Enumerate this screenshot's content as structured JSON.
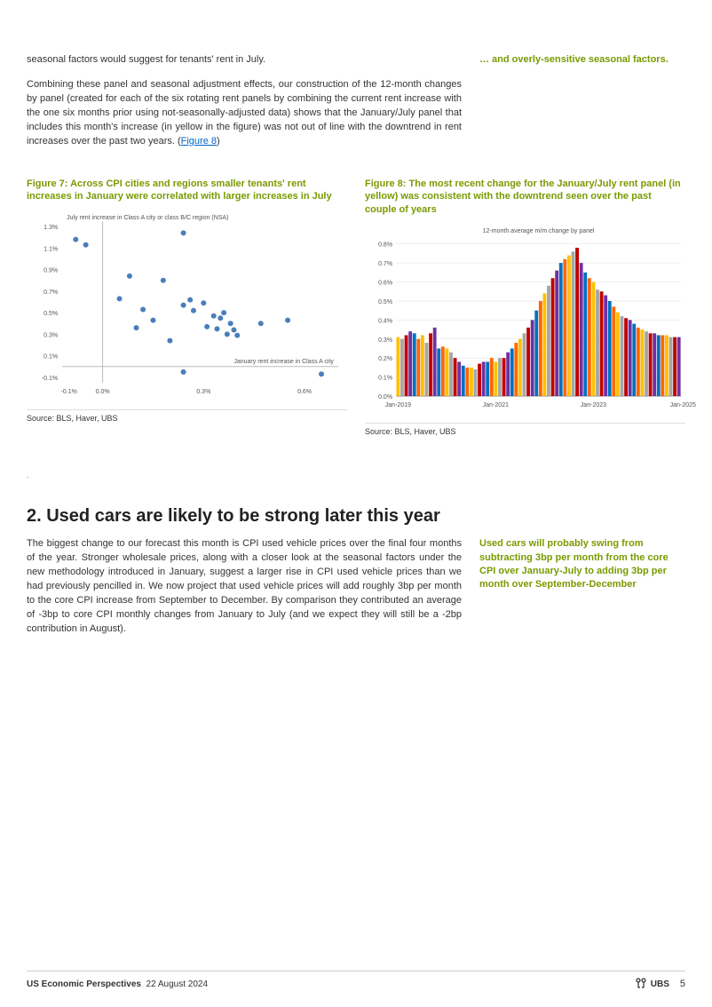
{
  "top": {
    "para1": "seasonal factors would suggest for tenants' rent in July.",
    "para2_pre": "Combining these panel and seasonal adjustment effects, our construction of the 12-month changes by panel (created for each of the six rotating rent panels by combining the current rent increase with the one six months prior using not-seasonally-adjusted data) shows that the January/July panel that includes this month's increase (in yellow in the figure) was not out of line with the downtrend in rent increases over the past two years. (",
    "para2_link": "Figure 8",
    "para2_post": ")",
    "margin1": "… and overly-sensitive seasonal factors."
  },
  "fig7": {
    "title": "Figure 7: Across CPI cities and regions smaller tenants' rent increases in January were correlated with larger increases in July",
    "source": "Source: BLS, Haver, UBS",
    "y_label": "July rent increase in Class A city or class B/C region (NSA)",
    "x_label": "January rent increase in Class A city",
    "x_ticks": [
      "-0.1%",
      "0.0%",
      "0.3%",
      "0.6%"
    ],
    "y_ticks": [
      "-0.1%",
      "0.1%",
      "0.3%",
      "0.5%",
      "0.7%",
      "0.9%",
      "1.1%",
      "1.3%"
    ],
    "points": [
      {
        "x": -0.08,
        "y": 1.18
      },
      {
        "x": -0.05,
        "y": 1.13
      },
      {
        "x": 0.05,
        "y": 0.63
      },
      {
        "x": 0.08,
        "y": 0.84
      },
      {
        "x": 0.1,
        "y": 0.36
      },
      {
        "x": 0.12,
        "y": 0.53
      },
      {
        "x": 0.15,
        "y": 0.43
      },
      {
        "x": 0.18,
        "y": 0.8
      },
      {
        "x": 0.2,
        "y": 0.24
      },
      {
        "x": 0.24,
        "y": 1.24
      },
      {
        "x": 0.24,
        "y": 0.57
      },
      {
        "x": 0.24,
        "y": -0.05
      },
      {
        "x": 0.26,
        "y": 0.62
      },
      {
        "x": 0.27,
        "y": 0.52
      },
      {
        "x": 0.3,
        "y": 0.59
      },
      {
        "x": 0.31,
        "y": 0.37
      },
      {
        "x": 0.33,
        "y": 0.47
      },
      {
        "x": 0.34,
        "y": 0.35
      },
      {
        "x": 0.35,
        "y": 0.45
      },
      {
        "x": 0.36,
        "y": 0.5
      },
      {
        "x": 0.37,
        "y": 0.3
      },
      {
        "x": 0.38,
        "y": 0.4
      },
      {
        "x": 0.39,
        "y": 0.34
      },
      {
        "x": 0.4,
        "y": 0.29
      },
      {
        "x": 0.47,
        "y": 0.4
      },
      {
        "x": 0.55,
        "y": 0.43
      },
      {
        "x": 0.65,
        "y": -0.07
      }
    ],
    "xlim": [
      -0.12,
      0.7
    ],
    "ylim": [
      -0.15,
      1.35
    ],
    "point_color": "#4a7ebb",
    "axis_color": "#bbbbbb"
  },
  "fig8": {
    "title": "Figure 8: The most recent change for the January/July rent panel (in yellow) was consistent with the downtrend seen over the past couple of years",
    "source": "Source: BLS, Haver, UBS",
    "sub_label": "12-month average m/m change by panel",
    "x_ticks": [
      "Jan-2019",
      "Jan-2021",
      "Jan-2023",
      "Jan-2025"
    ],
    "y_ticks": [
      "0.0%",
      "0.1%",
      "0.2%",
      "0.3%",
      "0.4%",
      "0.5%",
      "0.6%",
      "0.7%",
      "0.8%"
    ],
    "ylim": [
      0,
      0.85
    ],
    "bar_colors": [
      "#ffc000",
      "#a6a6a6",
      "#c00000",
      "#7030a0",
      "#0070c0",
      "#ff6600"
    ],
    "bars": [
      0.31,
      0.3,
      0.32,
      0.34,
      0.33,
      0.3,
      0.32,
      0.28,
      0.33,
      0.36,
      0.25,
      0.26,
      0.25,
      0.23,
      0.2,
      0.18,
      0.16,
      0.15,
      0.15,
      0.14,
      0.17,
      0.18,
      0.18,
      0.2,
      0.18,
      0.2,
      0.2,
      0.23,
      0.25,
      0.28,
      0.3,
      0.33,
      0.36,
      0.4,
      0.45,
      0.5,
      0.54,
      0.58,
      0.62,
      0.66,
      0.7,
      0.72,
      0.74,
      0.76,
      0.78,
      0.7,
      0.65,
      0.62,
      0.6,
      0.56,
      0.55,
      0.53,
      0.5,
      0.47,
      0.44,
      0.42,
      0.41,
      0.4,
      0.38,
      0.36,
      0.35,
      0.34,
      0.33,
      0.33,
      0.32,
      0.32,
      0.32,
      0.31,
      0.31,
      0.31
    ],
    "grid_color": "#e0e0e0"
  },
  "section2": {
    "heading": "2. Used cars are likely to be strong later this year",
    "para": "The biggest change to our forecast this month is CPI used vehicle prices over the final four months of the year. Stronger wholesale prices, along with a closer look at the seasonal factors under the new methodology introduced in January, suggest a larger rise in CPI used vehicle prices than we had previously pencilled in. We now project that used vehicle prices will add roughly 3bp per month to the core CPI increase from September to December. By comparison they contributed an average of -3bp to core CPI monthly changes from January to July (and we expect they will still be a -2bp contribution in August).",
    "margin": "Used cars will probably swing from subtracting 3bp per month from the core CPI over January-July to adding 3bp per month over September-December"
  },
  "footer": {
    "title": "US Economic Perspectives",
    "date": "22 August 2024",
    "brand": "UBS",
    "page": "5"
  }
}
